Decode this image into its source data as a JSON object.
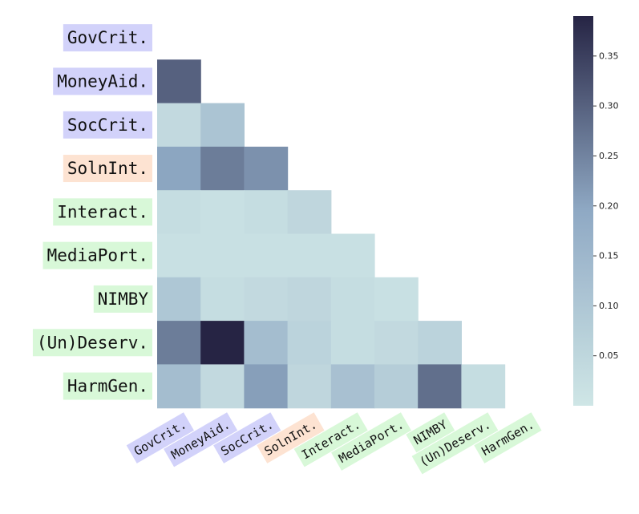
{
  "chart_data": {
    "type": "heatmap",
    "layout": "lower-triangle",
    "rows": [
      "GovCrit.",
      "MoneyAid.",
      "SocCrit.",
      "SolnInt.",
      "Interact.",
      "MediaPort.",
      "NIMBY",
      "(Un)Deserv.",
      "HarmGen."
    ],
    "columns": [
      "GovCrit.",
      "MoneyAid.",
      "SocCrit.",
      "SolnInt.",
      "Interact.",
      "MediaPort.",
      "NIMBY",
      "(Un)Deserv.",
      "HarmGen."
    ],
    "label_groups": [
      "blue",
      "blue",
      "blue",
      "orange",
      "green",
      "green",
      "green",
      "green",
      "green"
    ],
    "values": [
      [],
      [
        0.3
      ],
      [
        0.04,
        0.11
      ],
      [
        0.2,
        0.26,
        0.23
      ],
      [
        0.03,
        0.02,
        0.03,
        0.05
      ],
      [
        0.02,
        0.02,
        0.02,
        0.02,
        0.02
      ],
      [
        0.1,
        0.03,
        0.04,
        0.05,
        0.03,
        0.02
      ],
      [
        0.26,
        0.39,
        0.13,
        0.06,
        0.03,
        0.04,
        0.06
      ],
      [
        0.13,
        0.04,
        0.21,
        0.05,
        0.12,
        0.08,
        0.28,
        0.03
      ]
    ],
    "colorbar": {
      "min": 0.0,
      "max": 0.39,
      "ticks": [
        0.05,
        0.1,
        0.15,
        0.2,
        0.25,
        0.3,
        0.35
      ],
      "tick_labels": [
        "0.05",
        "0.10",
        "0.15",
        "0.20",
        "0.25",
        "0.30",
        "0.35"
      ],
      "low_color": "#cfe6e6",
      "mid_color": "#8fa9c4",
      "high_color": "#262444"
    }
  },
  "group_colors": {
    "blue": "#d2d2fa",
    "orange": "#fde3d2",
    "green": "#d8f8d8"
  }
}
